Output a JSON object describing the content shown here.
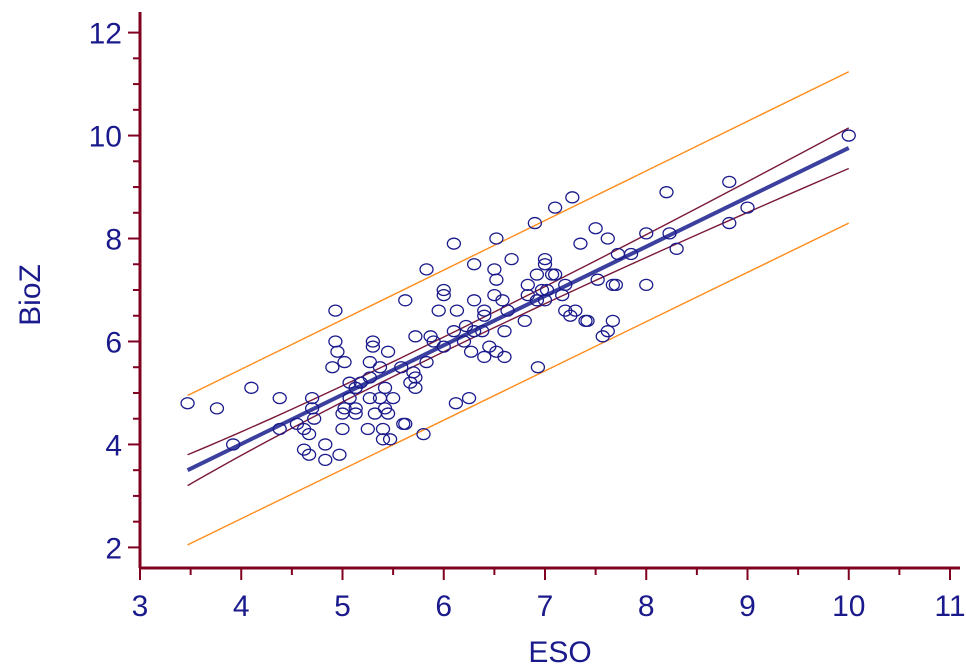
{
  "chart_data": {
    "type": "scatter",
    "title": "",
    "xlabel": "ESO",
    "ylabel": "BioZ",
    "xlim": [
      3,
      11
    ],
    "ylim": [
      1.6,
      12.4
    ],
    "xticks": [
      3,
      4,
      5,
      6,
      7,
      8,
      9,
      10,
      11
    ],
    "yticks": [
      2,
      4,
      6,
      8,
      10,
      12
    ],
    "grid": false,
    "points": [
      [
        3.47,
        4.8
      ],
      [
        3.76,
        4.7
      ],
      [
        3.92,
        4.0
      ],
      [
        4.1,
        5.1
      ],
      [
        4.38,
        4.9
      ],
      [
        4.38,
        4.3
      ],
      [
        4.55,
        4.4
      ],
      [
        4.62,
        4.3
      ],
      [
        4.62,
        3.9
      ],
      [
        4.67,
        3.8
      ],
      [
        4.67,
        4.2
      ],
      [
        4.7,
        4.9
      ],
      [
        4.7,
        4.7
      ],
      [
        4.72,
        4.5
      ],
      [
        4.83,
        3.7
      ],
      [
        4.83,
        4.0
      ],
      [
        4.9,
        5.5
      ],
      [
        4.93,
        6.6
      ],
      [
        4.93,
        6.0
      ],
      [
        4.95,
        5.8
      ],
      [
        4.97,
        3.8
      ],
      [
        5.0,
        4.3
      ],
      [
        5.0,
        4.6
      ],
      [
        5.02,
        4.7
      ],
      [
        5.02,
        5.6
      ],
      [
        5.07,
        5.2
      ],
      [
        5.07,
        4.9
      ],
      [
        5.13,
        4.7
      ],
      [
        5.13,
        4.6
      ],
      [
        5.13,
        5.1
      ],
      [
        5.18,
        5.2
      ],
      [
        5.25,
        4.3
      ],
      [
        5.27,
        4.9
      ],
      [
        5.27,
        5.3
      ],
      [
        5.27,
        5.6
      ],
      [
        5.3,
        6.0
      ],
      [
        5.3,
        5.9
      ],
      [
        5.32,
        4.6
      ],
      [
        5.37,
        5.5
      ],
      [
        5.37,
        4.9
      ],
      [
        5.4,
        4.1
      ],
      [
        5.4,
        4.3
      ],
      [
        5.42,
        4.7
      ],
      [
        5.42,
        5.1
      ],
      [
        5.45,
        4.6
      ],
      [
        5.45,
        5.8
      ],
      [
        5.47,
        4.1
      ],
      [
        5.5,
        4.9
      ],
      [
        5.58,
        5.5
      ],
      [
        5.6,
        4.4
      ],
      [
        5.62,
        4.4
      ],
      [
        5.62,
        6.8
      ],
      [
        5.67,
        5.2
      ],
      [
        5.7,
        5.4
      ],
      [
        5.72,
        6.1
      ],
      [
        5.72,
        5.1
      ],
      [
        5.72,
        5.3
      ],
      [
        5.8,
        4.2
      ],
      [
        5.83,
        5.6
      ],
      [
        5.83,
        7.4
      ],
      [
        5.87,
        6.1
      ],
      [
        5.9,
        6.0
      ],
      [
        5.95,
        6.6
      ],
      [
        6.0,
        5.9
      ],
      [
        6.0,
        7.0
      ],
      [
        6.0,
        6.9
      ],
      [
        6.1,
        6.2
      ],
      [
        6.1,
        7.9
      ],
      [
        6.12,
        4.8
      ],
      [
        6.13,
        6.6
      ],
      [
        6.2,
        6.0
      ],
      [
        6.22,
        6.3
      ],
      [
        6.25,
        4.9
      ],
      [
        6.27,
        5.8
      ],
      [
        6.3,
        6.8
      ],
      [
        6.3,
        6.2
      ],
      [
        6.3,
        7.5
      ],
      [
        6.38,
        6.2
      ],
      [
        6.4,
        6.6
      ],
      [
        6.4,
        6.5
      ],
      [
        6.4,
        5.7
      ],
      [
        6.45,
        5.9
      ],
      [
        6.5,
        7.4
      ],
      [
        6.5,
        6.9
      ],
      [
        6.52,
        8.0
      ],
      [
        6.52,
        7.2
      ],
      [
        6.52,
        5.8
      ],
      [
        6.58,
        6.8
      ],
      [
        6.6,
        5.7
      ],
      [
        6.6,
        6.2
      ],
      [
        6.63,
        6.6
      ],
      [
        6.67,
        7.6
      ],
      [
        6.8,
        6.4
      ],
      [
        6.83,
        7.1
      ],
      [
        6.83,
        6.9
      ],
      [
        6.9,
        8.3
      ],
      [
        6.92,
        7.3
      ],
      [
        6.92,
        6.8
      ],
      [
        6.93,
        5.5
      ],
      [
        6.97,
        7.0
      ],
      [
        7.0,
        7.6
      ],
      [
        7.0,
        7.5
      ],
      [
        7.0,
        6.8
      ],
      [
        7.02,
        7.0
      ],
      [
        7.07,
        7.3
      ],
      [
        7.1,
        8.6
      ],
      [
        7.1,
        7.3
      ],
      [
        7.17,
        6.9
      ],
      [
        7.2,
        7.1
      ],
      [
        7.2,
        6.6
      ],
      [
        7.25,
        6.5
      ],
      [
        7.27,
        8.8
      ],
      [
        7.3,
        6.6
      ],
      [
        7.35,
        7.9
      ],
      [
        7.4,
        6.4
      ],
      [
        7.42,
        6.4
      ],
      [
        7.5,
        8.2
      ],
      [
        7.52,
        7.2
      ],
      [
        7.57,
        6.1
      ],
      [
        7.62,
        8.0
      ],
      [
        7.62,
        6.2
      ],
      [
        7.67,
        6.4
      ],
      [
        7.67,
        7.1
      ],
      [
        7.7,
        7.1
      ],
      [
        7.72,
        7.7
      ],
      [
        7.85,
        7.7
      ],
      [
        8.0,
        8.1
      ],
      [
        8.0,
        7.1
      ],
      [
        8.2,
        8.9
      ],
      [
        8.23,
        8.1
      ],
      [
        8.3,
        7.8
      ],
      [
        8.82,
        9.1
      ],
      [
        8.82,
        8.3
      ],
      [
        9.0,
        8.6
      ],
      [
        10.0,
        10.0
      ]
    ],
    "regression_line": [
      [
        3.47,
        3.5
      ],
      [
        10.0,
        9.76
      ]
    ],
    "confidence_band": {
      "upper": [
        [
          3.47,
          3.8
        ],
        [
          6.2,
          6.28
        ],
        [
          10.0,
          10.15
        ]
      ],
      "lower": [
        [
          3.47,
          3.2
        ],
        [
          6.2,
          5.99
        ],
        [
          10.0,
          9.36
        ]
      ]
    },
    "prediction_band": {
      "upper": [
        [
          3.47,
          4.95
        ],
        [
          10.0,
          11.24
        ]
      ],
      "lower": [
        [
          3.47,
          2.05
        ],
        [
          10.0,
          8.3
        ]
      ]
    },
    "colors": {
      "points": "#1a1a8c",
      "regression": "#3b3f9e",
      "confidence": "#7a1a3a",
      "prediction": "#ff8c1a",
      "axes": "#800020",
      "labels": "#1a1a8c"
    }
  }
}
